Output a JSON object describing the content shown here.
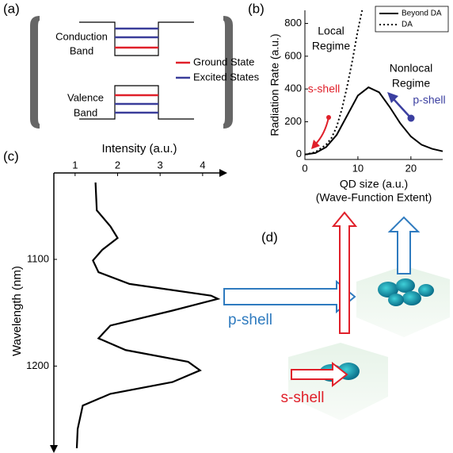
{
  "figure_labels": [
    "(a)",
    "(b)",
    "(c)",
    "(d)"
  ],
  "diagram_a": {
    "conduction_band": [
      "Conduction",
      "Band"
    ],
    "valence_band": [
      "Valence",
      "Band"
    ],
    "legend": [
      {
        "name": "Ground State",
        "color": "#e0202a"
      },
      {
        "name": "Excited States",
        "color": "#3a3d9a"
      }
    ]
  },
  "chart_data": [
    {
      "type": "line",
      "x_label": [
        "QD size (a.u.)",
        "(Wave-Function Extent)"
      ],
      "y_label": "Radiation Rate (a.u.)",
      "xlim": [
        0,
        26
      ],
      "ylim": [
        -30,
        880
      ],
      "xticks": [
        0,
        10,
        20
      ],
      "yticks": [
        0,
        200,
        400,
        600,
        800
      ],
      "legend": "upper right",
      "series": [
        {
          "name": "Beyond DA",
          "color": "#000000",
          "dash": "solid",
          "x": [
            0,
            2,
            4,
            6,
            8,
            10,
            12,
            14,
            16,
            18,
            20,
            22,
            24,
            26
          ],
          "values": [
            0,
            10,
            45,
            120,
            240,
            360,
            410,
            380,
            290,
            190,
            110,
            60,
            35,
            20
          ]
        },
        {
          "name": "DA",
          "color": "#000000",
          "dash": "dotted",
          "x": [
            0,
            2,
            4,
            5,
            6,
            7,
            8,
            9,
            10,
            10.8
          ],
          "values": [
            0,
            15,
            60,
            100,
            170,
            280,
            420,
            580,
            760,
            880
          ]
        }
      ],
      "annotations": [
        {
          "text": [
            "Local",
            "Regime"
          ]
        },
        {
          "text": [
            "Nonlocal",
            "Regime"
          ]
        },
        {
          "text": "s-shell",
          "color": "#e0202a"
        },
        {
          "text": "p-shell",
          "color": "#3b3fa0"
        }
      ]
    },
    {
      "type": "line",
      "orientation": "vertical",
      "x_label": "Wavelength (nm)",
      "y_label": "Intensity (a.u.)",
      "color": "#000000",
      "xlim": [
        1019,
        1277
      ],
      "xticks": [
        1100,
        1200
      ],
      "ylim": [
        0.5,
        4.45
      ],
      "yticks": [
        1,
        2,
        3,
        4
      ],
      "x": [
        1028,
        1054,
        1069,
        1080,
        1091,
        1101,
        1112,
        1123,
        1134,
        1137,
        1148,
        1162,
        1174,
        1185,
        1196,
        1204,
        1215,
        1226,
        1237,
        1259,
        1277
      ],
      "values": [
        1.48,
        1.51,
        1.83,
        2.0,
        1.64,
        1.42,
        1.55,
        2.28,
        4.2,
        4.36,
        3.29,
        1.83,
        1.55,
        2.19,
        3.66,
        3.94,
        3.29,
        1.83,
        1.18,
        1.06,
        1.04
      ]
    }
  ],
  "diagram_d": {
    "p_shell": "p-shell",
    "s_shell": "s-shell"
  }
}
